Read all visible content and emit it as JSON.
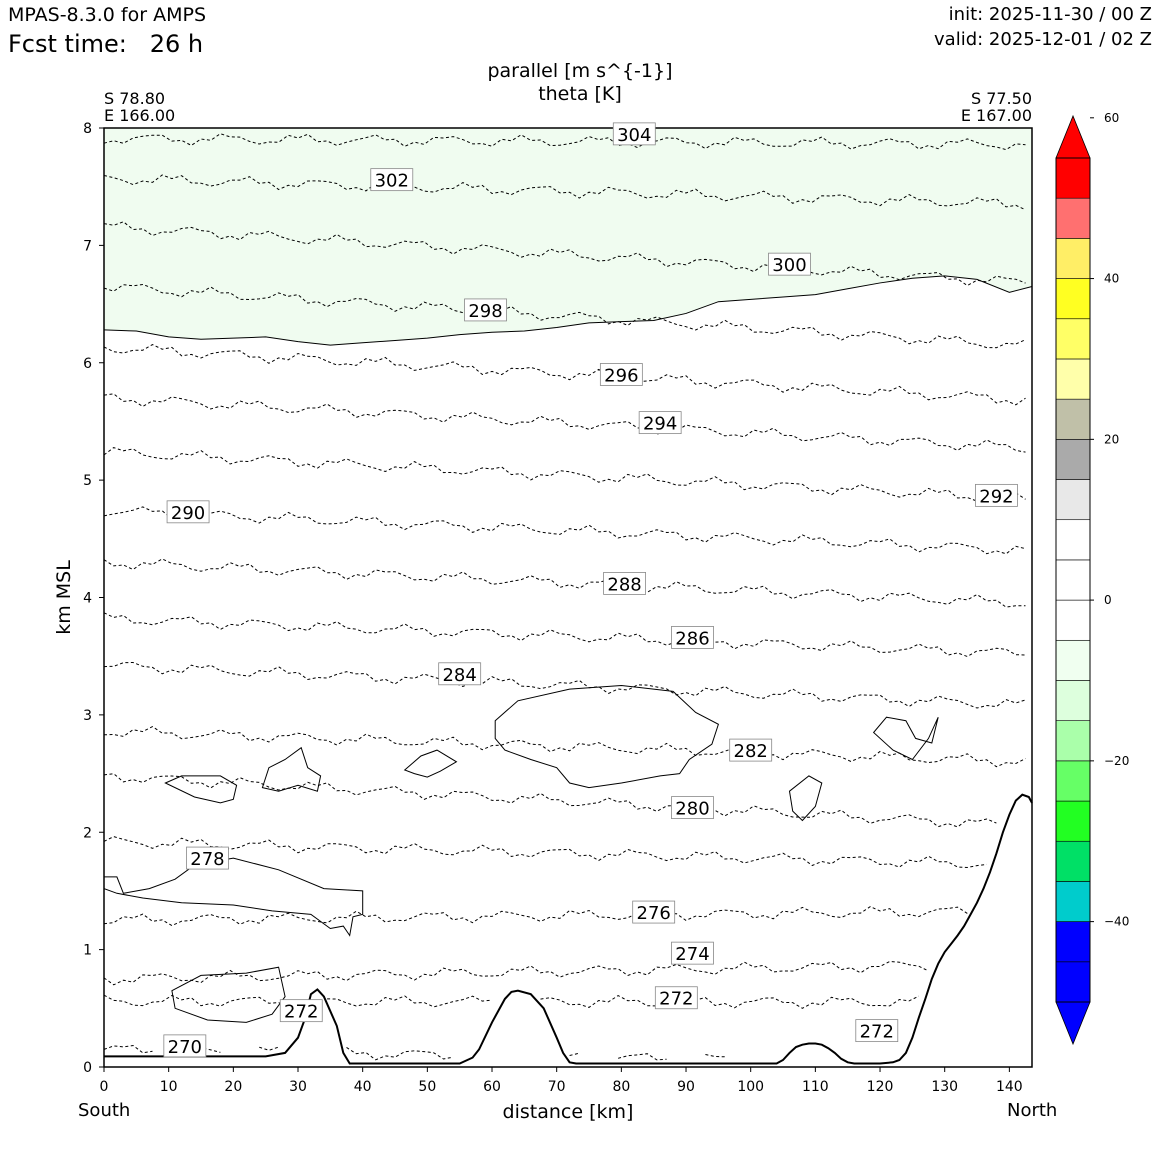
{
  "header": {
    "model": "MPAS-8.3.0 for AMPS",
    "fcst_label": "Fcst time:",
    "fcst_value": "26 h",
    "init": "init: 2025-11-30 / 00 Z",
    "valid": "valid: 2025-12-01 / 02 Z"
  },
  "endpoints": {
    "left_lat": "S 78.80",
    "left_lon": "E 166.00",
    "right_lat": "S 77.50",
    "right_lon": "E 167.00",
    "left_dir": "South",
    "right_dir": "North"
  },
  "colors": {
    "shade": "#f0fcf0",
    "colorbar": [
      "#0000ff",
      "#00cccc",
      "#00e066",
      "#22ff22",
      "#66ff66",
      "#aaffaa",
      "#ddffdd",
      "#f0fff0",
      "#ffffff",
      "#ffffff",
      "#e8e8e8",
      "#aaaaaa",
      "#c0c0a8",
      "#ffffaa",
      "#ffff66",
      "#ffff22",
      "#ffee66",
      "#ff7070",
      "#ff0000"
    ]
  },
  "chart_data": {
    "type": "contour",
    "title": "parallel [m s^{-1}]",
    "subtitle": "theta [K]",
    "xlabel": "distance [km]",
    "ylabel": "km MSL",
    "xlim": [
      0,
      143.5
    ],
    "ylim": [
      0,
      8
    ],
    "xticks": [
      "0",
      "10",
      "20",
      "30",
      "40",
      "50",
      "60",
      "70",
      "80",
      "90",
      "100",
      "110",
      "120",
      "130",
      "140"
    ],
    "yticks": [
      "0",
      "1",
      "2",
      "3",
      "4",
      "5",
      "6",
      "7",
      "8"
    ],
    "theta_levels": [
      270,
      272,
      274,
      276,
      278,
      280,
      282,
      284,
      286,
      288,
      290,
      292,
      294,
      296,
      298,
      300,
      302,
      304
    ],
    "theta_labels": [
      {
        "text": "270",
        "x": 12.5,
        "y": 0.18
      },
      {
        "text": "272",
        "x": 30.5,
        "y": 0.48
      },
      {
        "text": "272",
        "x": 88.5,
        "y": 0.59
      },
      {
        "text": "272",
        "x": 119.5,
        "y": 0.31
      },
      {
        "text": "274",
        "x": 91,
        "y": 0.97
      },
      {
        "text": "276",
        "x": 85,
        "y": 1.32
      },
      {
        "text": "278",
        "x": 16,
        "y": 1.78
      },
      {
        "text": "280",
        "x": 91,
        "y": 2.21
      },
      {
        "text": "282",
        "x": 100,
        "y": 2.7
      },
      {
        "text": "284",
        "x": 55,
        "y": 3.35
      },
      {
        "text": "286",
        "x": 91,
        "y": 3.66
      },
      {
        "text": "288",
        "x": 80.5,
        "y": 4.12
      },
      {
        "text": "290",
        "x": 13,
        "y": 4.73
      },
      {
        "text": "292",
        "x": 138,
        "y": 4.87
      },
      {
        "text": "294",
        "x": 86,
        "y": 5.49
      },
      {
        "text": "296",
        "x": 80,
        "y": 5.9
      },
      {
        "text": "298",
        "x": 59,
        "y": 6.45
      },
      {
        "text": "300",
        "x": 106,
        "y": 6.84
      },
      {
        "text": "302",
        "x": 44.5,
        "y": 7.56
      },
      {
        "text": "304",
        "x": 82,
        "y": 7.95
      }
    ],
    "terrain": {
      "x": [
        0,
        5,
        10,
        15,
        20,
        25,
        28,
        30,
        31,
        32,
        33,
        34,
        36,
        37,
        38,
        40,
        45,
        50,
        55,
        57,
        58,
        60,
        62,
        63,
        64,
        66,
        68,
        70,
        71,
        72,
        73,
        75,
        80,
        90,
        100,
        104,
        105,
        106,
        107,
        108,
        109,
        110,
        111,
        112,
        113,
        114,
        115,
        116,
        118,
        120,
        122,
        123,
        124,
        125,
        126,
        127,
        128,
        129,
        130,
        131,
        132,
        133,
        134,
        135,
        136,
        137,
        138,
        139,
        140,
        141,
        142,
        143,
        143.5
      ],
      "y": [
        0.09,
        0.09,
        0.09,
        0.09,
        0.09,
        0.09,
        0.12,
        0.25,
        0.4,
        0.62,
        0.66,
        0.6,
        0.35,
        0.12,
        0.03,
        0.03,
        0.03,
        0.03,
        0.03,
        0.08,
        0.15,
        0.38,
        0.58,
        0.64,
        0.65,
        0.62,
        0.5,
        0.25,
        0.12,
        0.04,
        0.03,
        0.03,
        0.03,
        0.03,
        0.03,
        0.03,
        0.06,
        0.12,
        0.17,
        0.19,
        0.2,
        0.2,
        0.19,
        0.16,
        0.12,
        0.07,
        0.04,
        0.03,
        0.03,
        0.03,
        0.04,
        0.06,
        0.12,
        0.25,
        0.42,
        0.58,
        0.75,
        0.88,
        0.98,
        1.05,
        1.12,
        1.2,
        1.3,
        1.4,
        1.52,
        1.66,
        1.82,
        2.0,
        2.15,
        2.27,
        2.32,
        2.3,
        2.25
      ]
    },
    "shaded_band": {
      "label": "0 to -5 m s^{-1}",
      "boundary_x": [
        0,
        5,
        10,
        15,
        20,
        25,
        30,
        35,
        40,
        45,
        50,
        55,
        60,
        65,
        70,
        75,
        80,
        85,
        90,
        95,
        100,
        105,
        110,
        115,
        120,
        125,
        130,
        135,
        140,
        143.5
      ],
      "boundary_y": [
        6.28,
        6.27,
        6.22,
        6.2,
        6.21,
        6.22,
        6.18,
        6.15,
        6.17,
        6.19,
        6.21,
        6.24,
        6.26,
        6.27,
        6.3,
        6.34,
        6.35,
        6.36,
        6.42,
        6.52,
        6.54,
        6.56,
        6.58,
        6.63,
        6.68,
        6.72,
        6.74,
        6.71,
        6.6,
        6.65
      ]
    },
    "colorbar": {
      "min": -50,
      "max": 55,
      "step": 5,
      "tick_values": [
        -40,
        -20,
        0,
        20,
        40,
        60
      ],
      "tick_labels": [
        "−40",
        "−20",
        "0",
        "20",
        "40",
        "60"
      ]
    }
  }
}
